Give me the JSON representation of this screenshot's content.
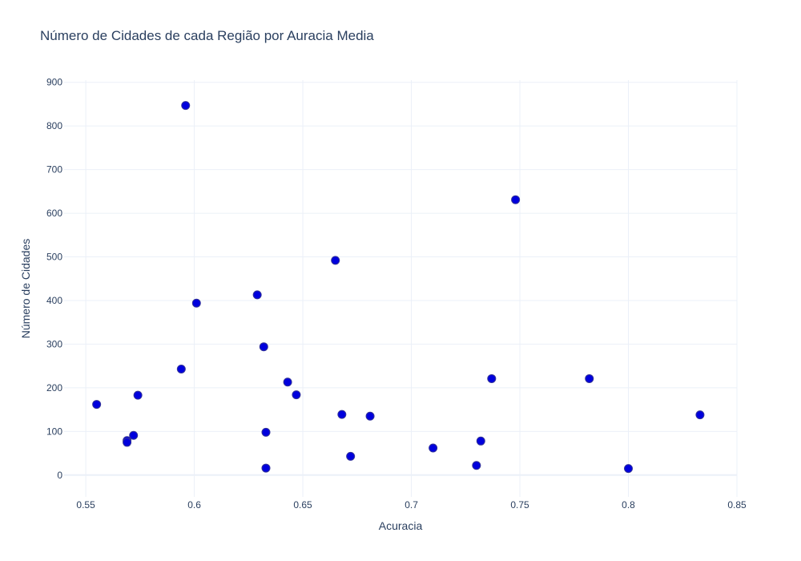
{
  "chart_data": {
    "type": "scatter",
    "title": "Número de Cidades de cada Região por Auracia Media",
    "xlabel": "Acuracia",
    "ylabel": "Número de Cidades",
    "xlim": [
      0.54,
      0.85
    ],
    "ylim": [
      -50,
      905
    ],
    "xticks": [
      0.55,
      0.6,
      0.65,
      0.7,
      0.75,
      0.8,
      0.85
    ],
    "xtick_labels": [
      "0.55",
      "0.6",
      "0.65",
      "0.7",
      "0.75",
      "0.8",
      "0.85"
    ],
    "yticks": [
      0,
      100,
      200,
      300,
      400,
      500,
      600,
      700,
      800,
      900
    ],
    "ytick_labels": [
      "0",
      "100",
      "200",
      "300",
      "400",
      "500",
      "600",
      "700",
      "800",
      "900"
    ],
    "grid": true,
    "marker_color": "#0000dd",
    "points": [
      {
        "x": 0.555,
        "y": 162
      },
      {
        "x": 0.569,
        "y": 79
      },
      {
        "x": 0.569,
        "y": 75
      },
      {
        "x": 0.572,
        "y": 91
      },
      {
        "x": 0.574,
        "y": 183
      },
      {
        "x": 0.594,
        "y": 243
      },
      {
        "x": 0.596,
        "y": 847
      },
      {
        "x": 0.601,
        "y": 394
      },
      {
        "x": 0.629,
        "y": 413
      },
      {
        "x": 0.632,
        "y": 294
      },
      {
        "x": 0.633,
        "y": 98
      },
      {
        "x": 0.633,
        "y": 16
      },
      {
        "x": 0.643,
        "y": 213
      },
      {
        "x": 0.647,
        "y": 184
      },
      {
        "x": 0.665,
        "y": 492
      },
      {
        "x": 0.668,
        "y": 139
      },
      {
        "x": 0.672,
        "y": 43
      },
      {
        "x": 0.681,
        "y": 135
      },
      {
        "x": 0.71,
        "y": 62
      },
      {
        "x": 0.73,
        "y": 22
      },
      {
        "x": 0.732,
        "y": 78
      },
      {
        "x": 0.737,
        "y": 221
      },
      {
        "x": 0.748,
        "y": 631
      },
      {
        "x": 0.782,
        "y": 221
      },
      {
        "x": 0.8,
        "y": 15
      },
      {
        "x": 0.833,
        "y": 138
      }
    ]
  }
}
